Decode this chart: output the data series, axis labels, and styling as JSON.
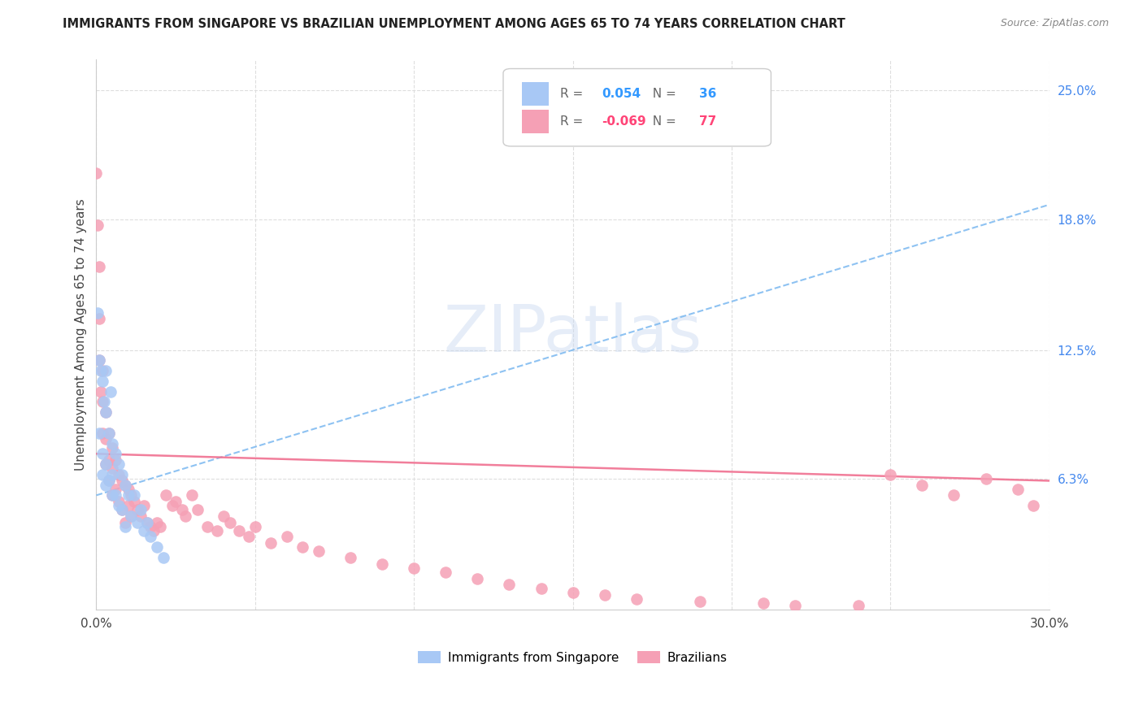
{
  "title": "IMMIGRANTS FROM SINGAPORE VS BRAZILIAN UNEMPLOYMENT AMONG AGES 65 TO 74 YEARS CORRELATION CHART",
  "source": "Source: ZipAtlas.com",
  "ylabel": "Unemployment Among Ages 65 to 74 years",
  "xlim": [
    0.0,
    0.3
  ],
  "ylim": [
    0.0,
    0.265
  ],
  "xtick_positions": [
    0.0,
    0.05,
    0.1,
    0.15,
    0.2,
    0.25,
    0.3
  ],
  "xtick_labels": [
    "0.0%",
    "",
    "",
    "",
    "",
    "",
    "30.0%"
  ],
  "ytick_vals_right": [
    0.25,
    0.188,
    0.125,
    0.063
  ],
  "ytick_labels_right": [
    "25.0%",
    "18.8%",
    "12.5%",
    "6.3%"
  ],
  "singapore_color": "#a8c8f5",
  "brazilian_color": "#f5a0b5",
  "singapore_trend_color": "#7ab8f0",
  "brazilian_trend_color": "#f07090",
  "singapore_R": "0.054",
  "singapore_N": "36",
  "brazilian_R": "-0.069",
  "brazilian_N": "77",
  "sg_x": [
    0.0005,
    0.001,
    0.001,
    0.0015,
    0.002,
    0.002,
    0.002,
    0.0025,
    0.003,
    0.003,
    0.003,
    0.003,
    0.004,
    0.004,
    0.0045,
    0.005,
    0.005,
    0.005,
    0.006,
    0.006,
    0.007,
    0.007,
    0.008,
    0.008,
    0.009,
    0.009,
    0.01,
    0.011,
    0.012,
    0.013,
    0.014,
    0.015,
    0.016,
    0.017,
    0.019,
    0.021
  ],
  "sg_y": [
    0.143,
    0.12,
    0.085,
    0.115,
    0.11,
    0.075,
    0.065,
    0.1,
    0.115,
    0.095,
    0.07,
    0.06,
    0.085,
    0.062,
    0.105,
    0.08,
    0.065,
    0.055,
    0.075,
    0.055,
    0.07,
    0.05,
    0.065,
    0.048,
    0.06,
    0.04,
    0.055,
    0.045,
    0.055,
    0.042,
    0.048,
    0.038,
    0.042,
    0.035,
    0.03,
    0.025
  ],
  "br_x": [
    0.0,
    0.0005,
    0.001,
    0.001,
    0.001,
    0.0015,
    0.002,
    0.002,
    0.002,
    0.003,
    0.003,
    0.003,
    0.004,
    0.004,
    0.004,
    0.005,
    0.005,
    0.005,
    0.006,
    0.006,
    0.007,
    0.007,
    0.008,
    0.008,
    0.009,
    0.009,
    0.01,
    0.01,
    0.011,
    0.011,
    0.012,
    0.013,
    0.014,
    0.015,
    0.016,
    0.017,
    0.018,
    0.019,
    0.02,
    0.022,
    0.024,
    0.025,
    0.027,
    0.028,
    0.03,
    0.032,
    0.035,
    0.038,
    0.04,
    0.042,
    0.045,
    0.048,
    0.05,
    0.055,
    0.06,
    0.065,
    0.07,
    0.08,
    0.09,
    0.1,
    0.11,
    0.12,
    0.13,
    0.14,
    0.15,
    0.16,
    0.17,
    0.19,
    0.21,
    0.22,
    0.24,
    0.25,
    0.26,
    0.27,
    0.28,
    0.29,
    0.295
  ],
  "br_y": [
    0.21,
    0.185,
    0.165,
    0.14,
    0.12,
    0.105,
    0.115,
    0.1,
    0.085,
    0.095,
    0.082,
    0.07,
    0.085,
    0.072,
    0.062,
    0.078,
    0.068,
    0.055,
    0.072,
    0.058,
    0.065,
    0.052,
    0.062,
    0.048,
    0.06,
    0.042,
    0.058,
    0.05,
    0.055,
    0.045,
    0.052,
    0.048,
    0.045,
    0.05,
    0.042,
    0.04,
    0.038,
    0.042,
    0.04,
    0.055,
    0.05,
    0.052,
    0.048,
    0.045,
    0.055,
    0.048,
    0.04,
    0.038,
    0.045,
    0.042,
    0.038,
    0.035,
    0.04,
    0.032,
    0.035,
    0.03,
    0.028,
    0.025,
    0.022,
    0.02,
    0.018,
    0.015,
    0.012,
    0.01,
    0.008,
    0.007,
    0.005,
    0.004,
    0.003,
    0.002,
    0.002,
    0.065,
    0.06,
    0.055,
    0.063,
    0.058,
    0.05
  ],
  "sg_trend_x": [
    0.0,
    0.3
  ],
  "sg_trend_y": [
    0.055,
    0.195
  ],
  "br_trend_x": [
    0.0,
    0.3
  ],
  "br_trend_y": [
    0.075,
    0.062
  ],
  "watermark": "ZIPatlas",
  "background_color": "#ffffff",
  "grid_color": "#dedede"
}
